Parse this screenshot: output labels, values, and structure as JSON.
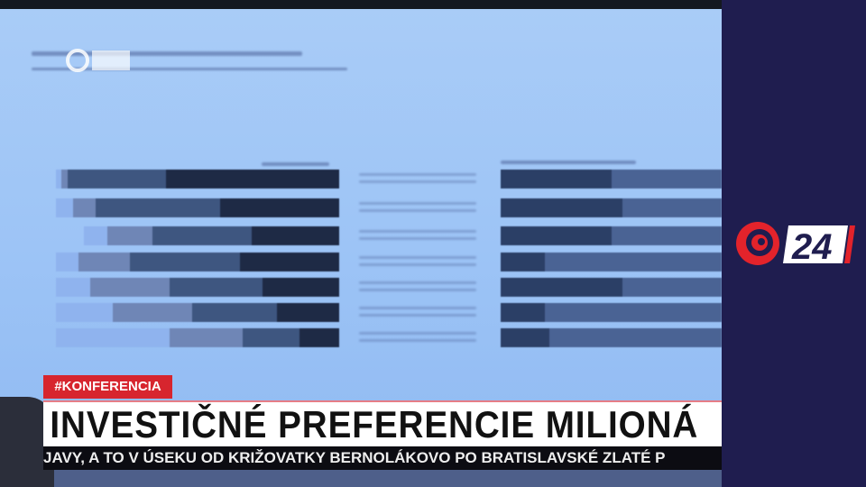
{
  "broadcast": {
    "tag": "#KONFERENCIA",
    "headline": "INVESTIČNÉ PREFERENCIE MILIONÁ",
    "ticker": "JAVY, A TO V ÚSEKU OD KRIŽOVATKY BERNOLÁKOVO PO BRATISLAVSKÉ ZLATÉ P"
  },
  "logo": {
    "text": "24",
    "colors": {
      "swirl": "#e3232b",
      "box": "#ffffff",
      "digits": "#1f1d4f",
      "stripe": "#e3232b"
    }
  },
  "colors": {
    "panel": "#1f1d4f",
    "slide": "#9dc4f6",
    "tag": "#d7252e"
  },
  "slide_bars": {
    "left": [
      [
        0.02,
        0.02,
        0.35,
        0.61
      ],
      [
        0.06,
        0.08,
        0.44,
        0.42
      ],
      [
        0.08,
        0.16,
        0.35,
        0.31
      ],
      [
        0.08,
        0.18,
        0.39,
        0.35
      ],
      [
        0.12,
        0.28,
        0.33,
        0.27
      ],
      [
        0.2,
        0.28,
        0.3,
        0.22
      ],
      [
        0.4,
        0.26,
        0.2,
        0.14
      ]
    ],
    "right": [
      [
        0.5,
        0.5
      ],
      [
        0.55,
        0.45
      ],
      [
        0.5,
        0.5
      ],
      [
        0.2,
        0.8
      ],
      [
        0.55,
        0.45
      ],
      [
        0.2,
        0.8
      ],
      [
        0.22,
        0.78
      ]
    ]
  }
}
